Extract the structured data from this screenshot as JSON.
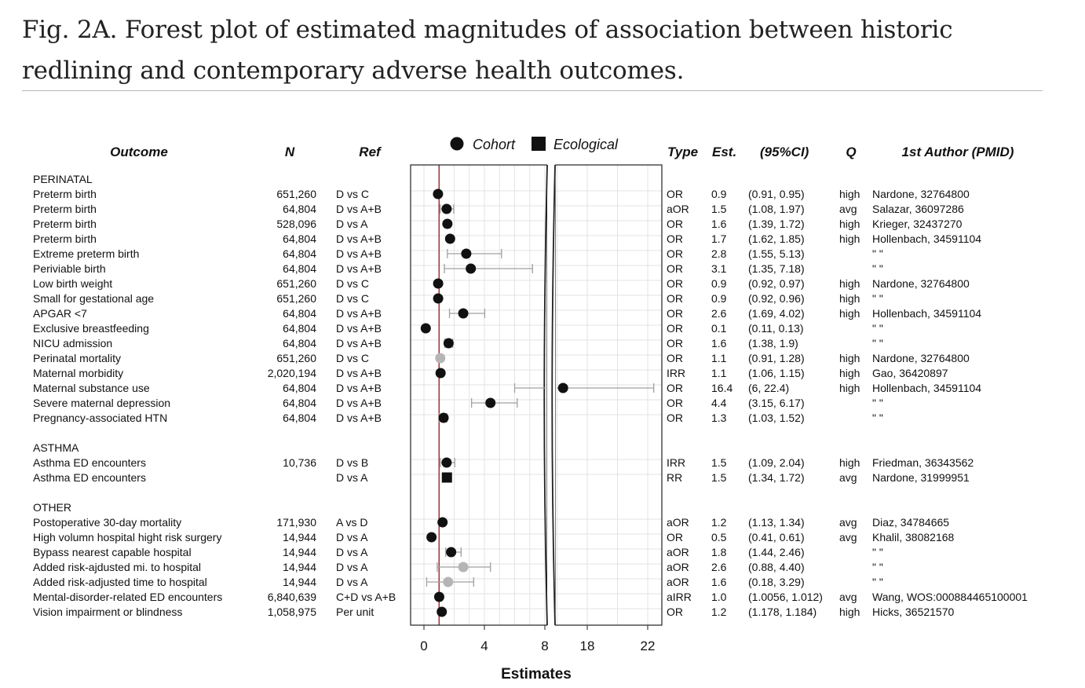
{
  "caption": "Fig. 2A. Forest plot of estimated magnitudes of association between historic redlining and contemporary adverse health outcomes.",
  "chart_data": {
    "type": "forest",
    "xlabel": "Estimates",
    "x_ticks_left": [
      0,
      4,
      8
    ],
    "x_ticks_right": [
      18,
      22
    ],
    "xlim_left": [
      -1,
      8.2
    ],
    "xlim_right": [
      8.2,
      24
    ],
    "axis_break": "between 8 and 18",
    "reference_line": 1,
    "legend": [
      {
        "label": "Cohort",
        "shape": "circle"
      },
      {
        "label": "Ecological",
        "shape": "square"
      }
    ],
    "legend_position": "top",
    "columns": {
      "outcome": "Outcome",
      "n": "N",
      "ref": "Ref",
      "type": "Type",
      "est": "Est.",
      "ci": "(95%CI)",
      "q": "Q",
      "author": "1st Author (PMID)"
    },
    "sections": [
      {
        "name": "PERINATAL",
        "rows": [
          {
            "outcome": "Preterm birth",
            "n": "651,260",
            "ref": "D vs C",
            "type": "OR",
            "est_text": "0.9",
            "ci_text": "(0.91, 0.95)",
            "q": "high",
            "author": "Nardone, 32764800",
            "est": 0.93,
            "lo": 0.91,
            "hi": 0.95,
            "design": "cohort",
            "sig": true
          },
          {
            "outcome": "Preterm birth",
            "n": "64,804",
            "ref": "D vs A+B",
            "type": "aOR",
            "est_text": "1.5",
            "ci_text": "(1.08, 1.97)",
            "q": "avg",
            "author": "Salazar, 36097286",
            "est": 1.5,
            "lo": 1.08,
            "hi": 1.97,
            "design": "cohort",
            "sig": true
          },
          {
            "outcome": "Preterm birth",
            "n": "528,096",
            "ref": "D vs A",
            "type": "OR",
            "est_text": "1.6",
            "ci_text": "(1.39, 1.72)",
            "q": "high",
            "author": "Krieger, 32437270",
            "est": 1.55,
            "lo": 1.39,
            "hi": 1.72,
            "design": "cohort",
            "sig": true
          },
          {
            "outcome": "Preterm birth",
            "n": "64,804",
            "ref": "D vs A+B",
            "type": "OR",
            "est_text": "1.7",
            "ci_text": "(1.62, 1.85)",
            "q": "high",
            "author": "Hollenbach, 34591104",
            "est": 1.73,
            "lo": 1.62,
            "hi": 1.85,
            "design": "cohort",
            "sig": true
          },
          {
            "outcome": "Extreme preterm birth",
            "n": "64,804",
            "ref": "D vs A+B",
            "type": "OR",
            "est_text": "2.8",
            "ci_text": "(1.55, 5.13)",
            "q": "",
            "author": "\" \"",
            "est": 2.8,
            "lo": 1.55,
            "hi": 5.13,
            "design": "cohort",
            "sig": true
          },
          {
            "outcome": "Periviable birth",
            "n": "64,804",
            "ref": "D vs A+B",
            "type": "OR",
            "est_text": "3.1",
            "ci_text": "(1.35, 7.18)",
            "q": "",
            "author": "\" \"",
            "est": 3.1,
            "lo": 1.35,
            "hi": 7.18,
            "design": "cohort",
            "sig": true
          },
          {
            "outcome": "Low birth weight",
            "n": "651,260",
            "ref": "D vs C",
            "type": "OR",
            "est_text": "0.9",
            "ci_text": "(0.92, 0.97)",
            "q": "high",
            "author": "Nardone, 32764800",
            "est": 0.94,
            "lo": 0.92,
            "hi": 0.97,
            "design": "cohort",
            "sig": true
          },
          {
            "outcome": "Small for gestational age",
            "n": "651,260",
            "ref": "D vs C",
            "type": "OR",
            "est_text": "0.9",
            "ci_text": "(0.92, 0.96)",
            "q": "high",
            "author": "\" \"",
            "est": 0.94,
            "lo": 0.92,
            "hi": 0.96,
            "design": "cohort",
            "sig": true
          },
          {
            "outcome": "APGAR <7",
            "n": "64,804",
            "ref": "D vs A+B",
            "type": "OR",
            "est_text": "2.6",
            "ci_text": "(1.69, 4.02)",
            "q": "high",
            "author": "Hollenbach, 34591104",
            "est": 2.6,
            "lo": 1.69,
            "hi": 4.02,
            "design": "cohort",
            "sig": true
          },
          {
            "outcome": "Exclusive breastfeeding",
            "n": "64,804",
            "ref": "D vs A+B",
            "type": "OR",
            "est_text": "0.1",
            "ci_text": "(0.11, 0.13)",
            "q": "",
            "author": "\" \"",
            "est": 0.12,
            "lo": 0.11,
            "hi": 0.13,
            "design": "cohort",
            "sig": true
          },
          {
            "outcome": "NICU admission",
            "n": "64,804",
            "ref": "D vs A+B",
            "type": "OR",
            "est_text": "1.6",
            "ci_text": "(1.38, 1.9)",
            "q": "",
            "author": "\" \"",
            "est": 1.63,
            "lo": 1.38,
            "hi": 1.9,
            "design": "cohort",
            "sig": true
          },
          {
            "outcome": "Perinatal mortality",
            "n": "651,260",
            "ref": "D vs C",
            "type": "OR",
            "est_text": "1.1",
            "ci_text": "(0.91, 1.28)",
            "q": "high",
            "author": "Nardone, 32764800",
            "est": 1.08,
            "lo": 0.91,
            "hi": 1.28,
            "design": "cohort",
            "sig": false
          },
          {
            "outcome": "Maternal morbidity",
            "n": "2,020,194",
            "ref": "D vs A+B",
            "type": "IRR",
            "est_text": "1.1",
            "ci_text": "(1.06, 1.15)",
            "q": "high",
            "author": "Gao, 36420897",
            "est": 1.1,
            "lo": 1.06,
            "hi": 1.15,
            "design": "cohort",
            "sig": true
          },
          {
            "outcome": "Maternal substance use",
            "n": "64,804",
            "ref": "D vs A+B",
            "type": "OR",
            "est_text": "16.4",
            "ci_text": "(6, 22.4)",
            "q": "high",
            "author": "Hollenbach, 34591104",
            "est": 16.4,
            "lo": 6,
            "hi": 22.4,
            "design": "cohort",
            "sig": true
          },
          {
            "outcome": "Severe maternal depression",
            "n": "64,804",
            "ref": "D vs A+B",
            "type": "OR",
            "est_text": "4.4",
            "ci_text": "(3.15, 6.17)",
            "q": "",
            "author": "\" \"",
            "est": 4.4,
            "lo": 3.15,
            "hi": 6.17,
            "design": "cohort",
            "sig": true
          },
          {
            "outcome": "Pregnancy-associated HTN",
            "n": "64,804",
            "ref": "D vs A+B",
            "type": "OR",
            "est_text": "1.3",
            "ci_text": "(1.03, 1.52)",
            "q": "",
            "author": "\" \"",
            "est": 1.3,
            "lo": 1.03,
            "hi": 1.52,
            "design": "cohort",
            "sig": true
          }
        ]
      },
      {
        "name": "ASTHMA",
        "rows": [
          {
            "outcome": "Asthma ED encounters",
            "n": "10,736",
            "ref": "D vs B",
            "type": "IRR",
            "est_text": "1.5",
            "ci_text": "(1.09, 2.04)",
            "q": "high",
            "author": "Friedman, 36343562",
            "est": 1.5,
            "lo": 1.09,
            "hi": 2.04,
            "design": "cohort",
            "sig": true
          },
          {
            "outcome": "Asthma ED encounters",
            "n": "",
            "ref": "D vs A",
            "type": "RR",
            "est_text": "1.5",
            "ci_text": "(1.34, 1.72)",
            "q": "avg",
            "author": "Nardone, 31999951",
            "est": 1.52,
            "lo": 1.34,
            "hi": 1.72,
            "design": "ecological",
            "sig": true
          }
        ]
      },
      {
        "name": "OTHER",
        "rows": [
          {
            "outcome": "Postoperative 30-day mortality",
            "n": "171,930",
            "ref": "A vs D",
            "type": "aOR",
            "est_text": "1.2",
            "ci_text": "(1.13, 1.34)",
            "q": "avg",
            "author": "Diaz, 34784665",
            "est": 1.23,
            "lo": 1.13,
            "hi": 1.34,
            "design": "cohort",
            "sig": true
          },
          {
            "outcome": "High volumn hospital hight risk surgery",
            "n": "14,944",
            "ref": "D vs A",
            "type": "OR",
            "est_text": "0.5",
            "ci_text": "(0.41, 0.61)",
            "q": "avg",
            "author": "Khalil, 38082168",
            "est": 0.5,
            "lo": 0.41,
            "hi": 0.61,
            "design": "cohort",
            "sig": true
          },
          {
            "outcome": "Bypass nearest capable hospital",
            "n": "14,944",
            "ref": "D vs A",
            "type": "aOR",
            "est_text": "1.8",
            "ci_text": "(1.44, 2.46)",
            "q": "",
            "author": "\" \"",
            "est": 1.8,
            "lo": 1.44,
            "hi": 2.46,
            "design": "cohort",
            "sig": true
          },
          {
            "outcome": "Added risk-ajdusted mi. to hospital",
            "n": "14,944",
            "ref": "D vs A",
            "type": "aOR",
            "est_text": "2.6",
            "ci_text": "(0.88, 4.40)",
            "q": "",
            "author": "\" \"",
            "est": 2.6,
            "lo": 0.88,
            "hi": 4.4,
            "design": "cohort",
            "sig": false
          },
          {
            "outcome": "Added risk-adjusted time to hospital",
            "n": "14,944",
            "ref": "D vs A",
            "type": "aOR",
            "est_text": "1.6",
            "ci_text": "(0.18, 3.29)",
            "q": "",
            "author": "\" \"",
            "est": 1.6,
            "lo": 0.18,
            "hi": 3.29,
            "design": "cohort",
            "sig": false
          },
          {
            "outcome": "Mental-disorder-related ED encounters",
            "n": "6,840,639",
            "ref": "C+D vs A+B",
            "type": "aIRR",
            "est_text": "1.0",
            "ci_text": "(1.0056, 1.012)",
            "q": "avg",
            "author": "Wang, WOS:000884465100001",
            "est": 1.01,
            "lo": 1.0056,
            "hi": 1.012,
            "design": "cohort",
            "sig": true
          },
          {
            "outcome": "Vision impairment or blindness",
            "n": "1,058,975",
            "ref": "Per unit",
            "type": "OR",
            "est_text": "1.2",
            "ci_text": "(1.178, 1.184)",
            "q": "high",
            "author": "Hicks, 36521570",
            "est": 1.18,
            "lo": 1.178,
            "hi": 1.184,
            "design": "cohort",
            "sig": true
          }
        ]
      }
    ],
    "colors": {
      "significant": "#111111",
      "not_significant": "#b5b5b5",
      "ci_line": "#a0a0a0",
      "reference": "#8b1a1a",
      "grid": "#e3e3e3"
    }
  }
}
